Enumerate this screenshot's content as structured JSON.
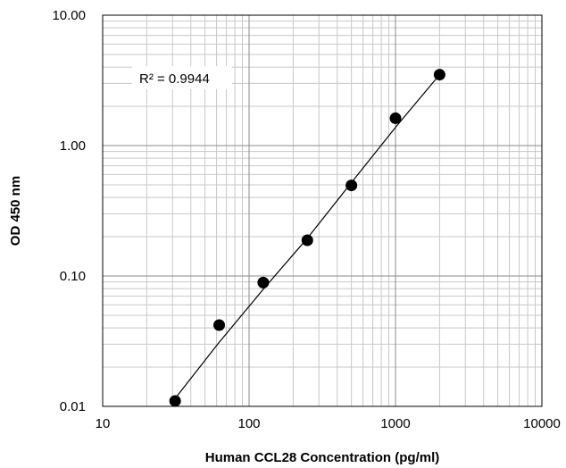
{
  "chart_data": {
    "type": "scatter",
    "title": "",
    "xlabel": "Human CCL28 Concentration (pg/ml)",
    "ylabel": "OD 450 nm",
    "x_scale": "log",
    "y_scale": "log",
    "xlim": [
      10,
      10000
    ],
    "ylim": [
      0.01,
      10
    ],
    "x_tick_labels": [
      "10",
      "100",
      "1000",
      "10000"
    ],
    "y_tick_labels": [
      "0.01",
      "0.10",
      "1.00",
      "10.00"
    ],
    "grid": true,
    "series": [
      {
        "x": [
          31.25,
          62.5,
          125,
          250,
          500,
          1000,
          2000
        ],
        "y": [
          0.011,
          0.042,
          0.089,
          0.188,
          0.495,
          1.62,
          3.5
        ]
      }
    ],
    "trendline": {
      "x": [
        31.25,
        62.5,
        125,
        250,
        500,
        1000,
        2000
      ],
      "y": [
        0.0115,
        0.031,
        0.079,
        0.195,
        0.52,
        1.38,
        3.5
      ]
    },
    "annotation": "R² = 0.9944"
  }
}
